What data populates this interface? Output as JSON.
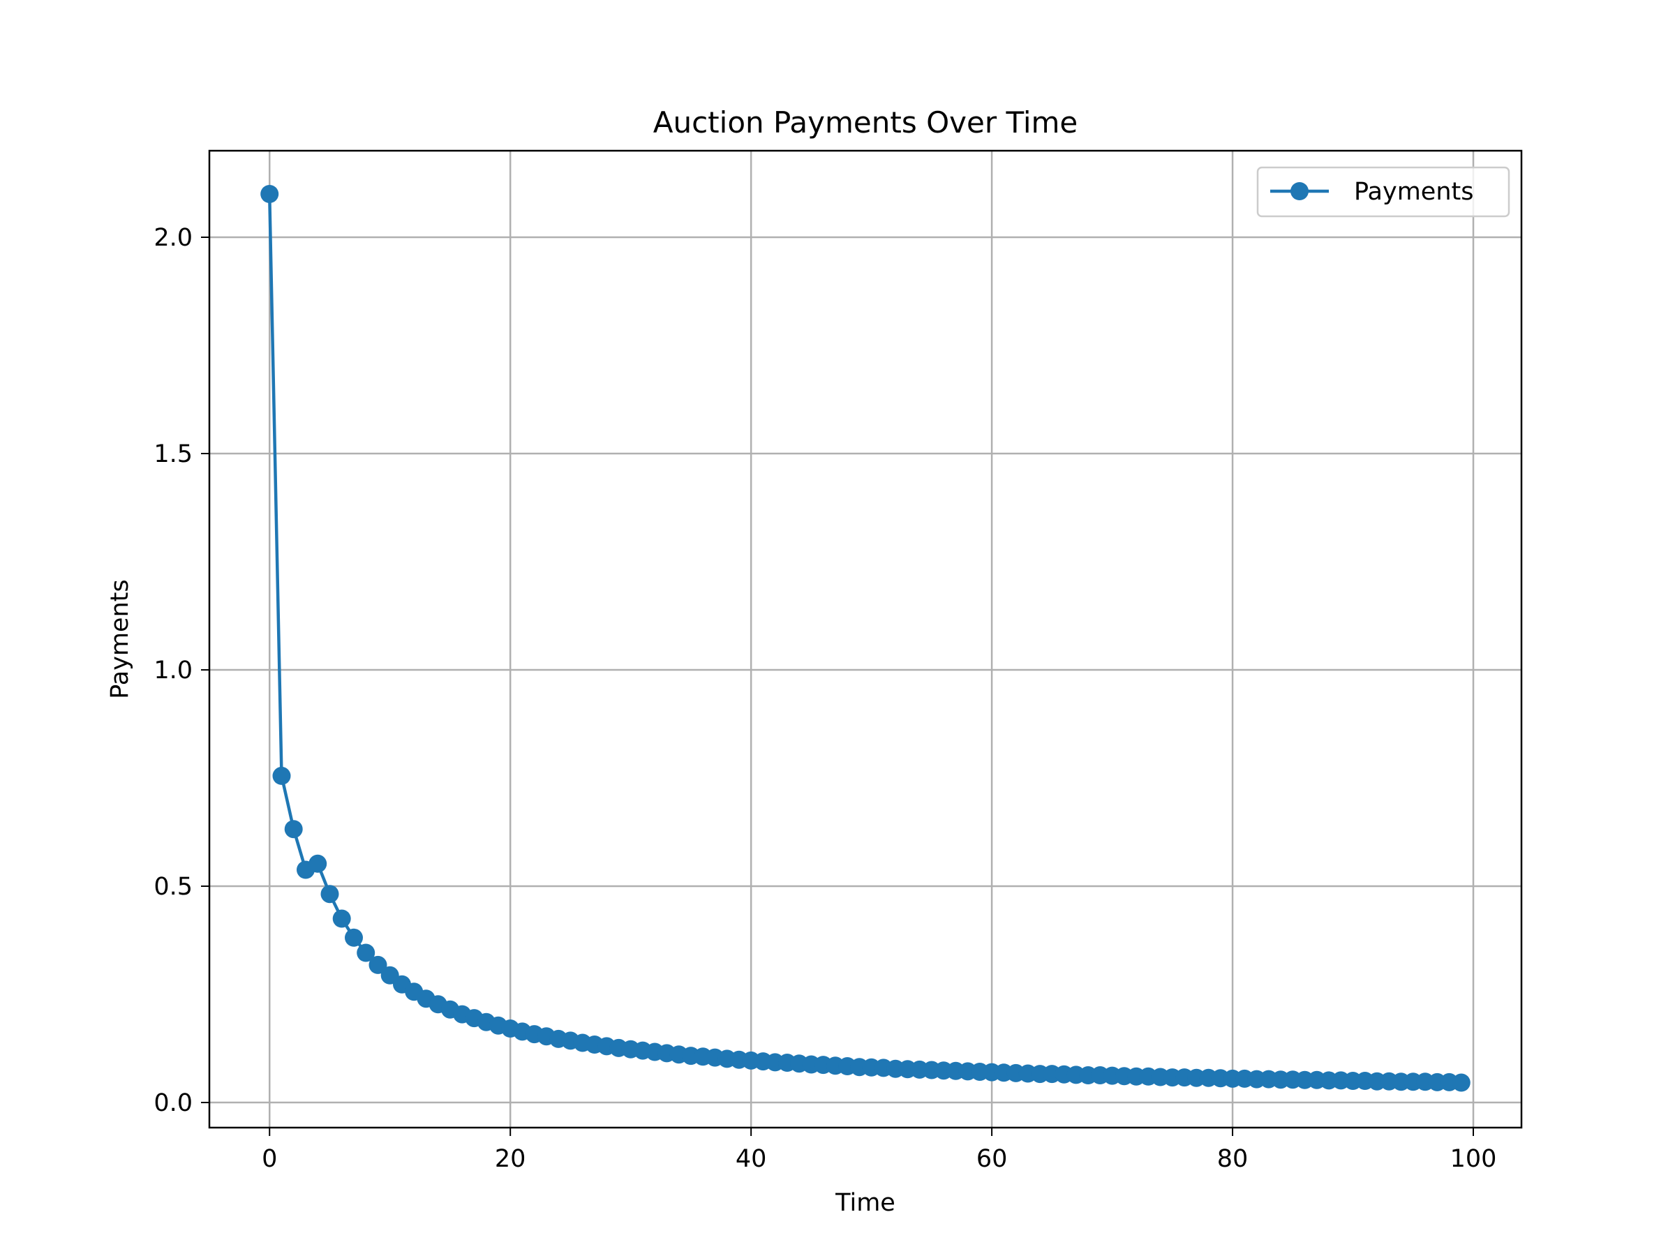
{
  "chart_data": {
    "type": "line",
    "title": "Auction Payments Over Time",
    "xlabel": "Time",
    "ylabel": "Payments",
    "xlim": [
      -5,
      104
    ],
    "ylim": [
      -0.058,
      2.2
    ],
    "xticks": [
      0,
      20,
      40,
      60,
      80,
      100
    ],
    "yticks": [
      0.0,
      0.5,
      1.0,
      1.5,
      2.0
    ],
    "xtick_labels": [
      "0",
      "20",
      "40",
      "60",
      "80",
      "100"
    ],
    "ytick_labels": [
      "0.0",
      "0.5",
      "1.0",
      "1.5",
      "2.0"
    ],
    "grid": true,
    "legend": {
      "position": "top-right",
      "entries": [
        "Payments"
      ]
    },
    "series": [
      {
        "name": "Payments",
        "color": "#1f77b4",
        "marker": "circle",
        "x": [
          0,
          1,
          2,
          3,
          4,
          5,
          6,
          7,
          8,
          9,
          10,
          11,
          12,
          13,
          14,
          15,
          16,
          17,
          18,
          19,
          20,
          21,
          22,
          23,
          24,
          25,
          26,
          27,
          28,
          29,
          30,
          31,
          32,
          33,
          34,
          35,
          36,
          37,
          38,
          39,
          40,
          41,
          42,
          43,
          44,
          45,
          46,
          47,
          48,
          49,
          50,
          51,
          52,
          53,
          54,
          55,
          56,
          57,
          58,
          59,
          60,
          61,
          62,
          63,
          64,
          65,
          66,
          67,
          68,
          69,
          70,
          71,
          72,
          73,
          74,
          75,
          76,
          77,
          78,
          79,
          80,
          81,
          82,
          83,
          84,
          85,
          86,
          87,
          88,
          89,
          90,
          91,
          92,
          93,
          94,
          95,
          96,
          97,
          98,
          99
        ],
        "values": [
          2.1,
          0.755,
          0.632,
          0.538,
          0.552,
          0.482,
          0.425,
          0.381,
          0.346,
          0.318,
          0.294,
          0.273,
          0.256,
          0.24,
          0.227,
          0.215,
          0.204,
          0.195,
          0.186,
          0.178,
          0.171,
          0.164,
          0.158,
          0.153,
          0.147,
          0.143,
          0.138,
          0.134,
          0.13,
          0.126,
          0.123,
          0.12,
          0.117,
          0.114,
          0.111,
          0.108,
          0.106,
          0.104,
          0.101,
          0.099,
          0.097,
          0.095,
          0.093,
          0.092,
          0.09,
          0.088,
          0.087,
          0.085,
          0.084,
          0.082,
          0.081,
          0.08,
          0.078,
          0.077,
          0.076,
          0.075,
          0.074,
          0.073,
          0.072,
          0.071,
          0.07,
          0.069,
          0.068,
          0.067,
          0.066,
          0.066,
          0.065,
          0.064,
          0.063,
          0.063,
          0.062,
          0.061,
          0.06,
          0.06,
          0.059,
          0.058,
          0.058,
          0.057,
          0.057,
          0.056,
          0.055,
          0.055,
          0.054,
          0.054,
          0.053,
          0.053,
          0.052,
          0.052,
          0.051,
          0.051,
          0.05,
          0.05,
          0.049,
          0.049,
          0.048,
          0.048,
          0.048,
          0.047,
          0.047,
          0.046
        ]
      }
    ]
  }
}
